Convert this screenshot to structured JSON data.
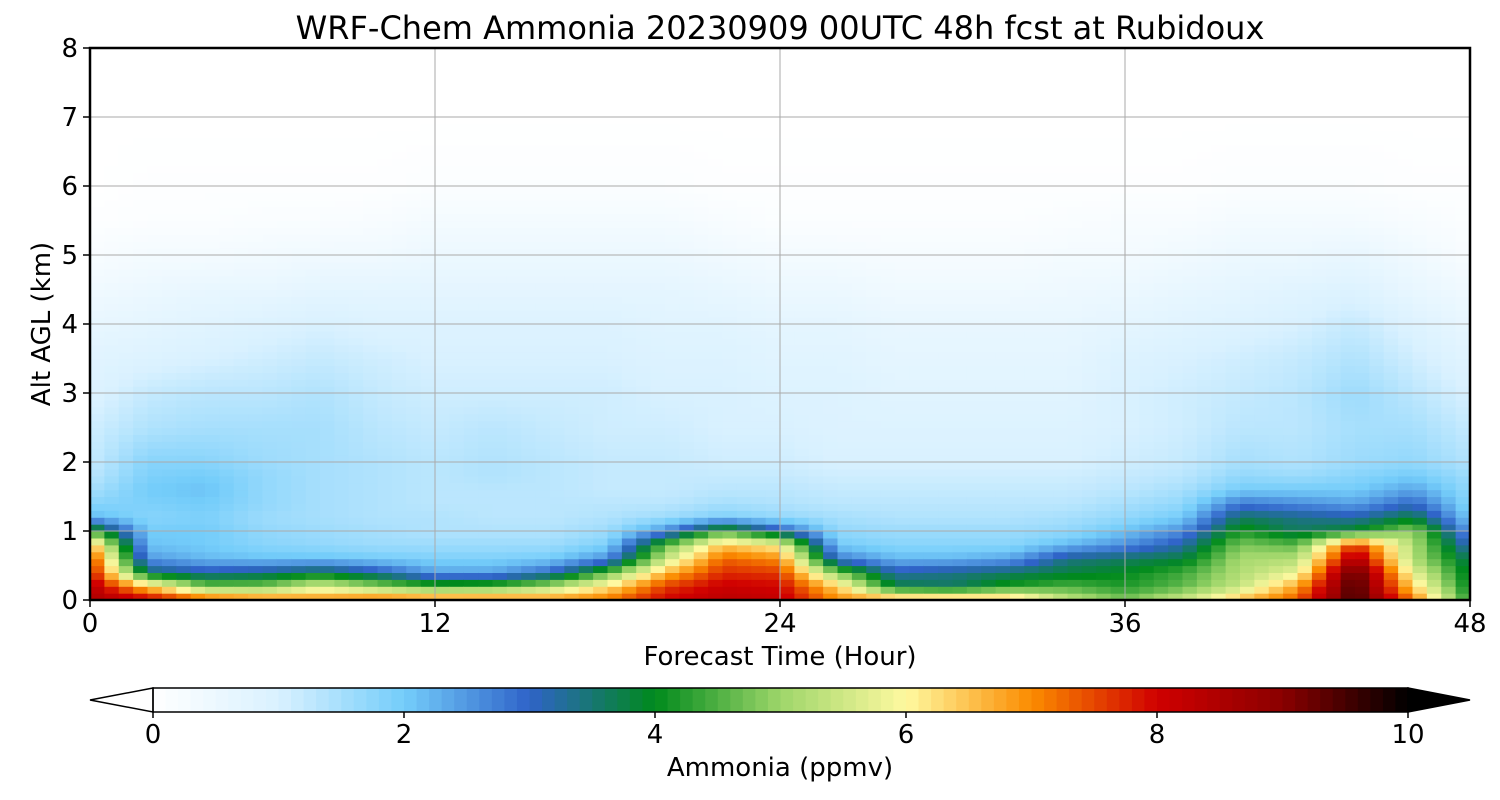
{
  "chart_data": {
    "type": "heatmap",
    "title": "WRF-Chem Ammonia  20230909 00UTC 48h fcst at Rubidoux",
    "xlabel": "Forecast Time (Hour)",
    "ylabel": "Alt AGL (km)",
    "xlim": [
      0,
      48
    ],
    "ylim": [
      0,
      8
    ],
    "xticks": [
      "0",
      "12",
      "24",
      "36",
      "48"
    ],
    "yticks": [
      "0",
      "1",
      "2",
      "3",
      "4",
      "5",
      "6",
      "7",
      "8"
    ],
    "grid": true,
    "colorbar": {
      "label": "Ammonia  (ppmv)",
      "range": [
        0,
        10
      ],
      "ticks": [
        "0",
        "2",
        "4",
        "6",
        "8",
        "10"
      ],
      "extend": "both",
      "colors": [
        "#ffffff",
        "#d9f1ff",
        "#74cdfa",
        "#2f63c8",
        "#008a1c",
        "#9ed66a",
        "#fff9a0",
        "#fb8c00",
        "#d00000",
        "#8a0000",
        "#000000"
      ]
    },
    "x": [
      0,
      2,
      4,
      6,
      8,
      10,
      12,
      14,
      16,
      18,
      20,
      22,
      24,
      26,
      28,
      30,
      32,
      34,
      36,
      38,
      40,
      42,
      44,
      46,
      48
    ],
    "z_levels_km": [
      0,
      0.2,
      0.4,
      0.6,
      0.8,
      1.0,
      1.2,
      1.4,
      1.6,
      1.8,
      2.0,
      2.5,
      3.0,
      3.5,
      4.0,
      4.5,
      5.0,
      5.5,
      6.0,
      7.0,
      8.0
    ],
    "values": [
      [
        8.5,
        8.4,
        8.0,
        7.7,
        6.8,
        4.5,
        2.2,
        1.8,
        1.5,
        1.3,
        1.2,
        1.1,
        0.9,
        0.8,
        0.6,
        0.4,
        0.2,
        0.05,
        0.0,
        0.0,
        0.0
      ],
      [
        8.2,
        6.5,
        3.6,
        2.5,
        2.1,
        2.0,
        1.8,
        1.9,
        2.0,
        1.9,
        1.8,
        1.4,
        1.2,
        0.9,
        0.7,
        0.5,
        0.3,
        0.1,
        0.05,
        0.0,
        0.0
      ],
      [
        7.5,
        4.8,
        3.2,
        2.2,
        2.0,
        2.0,
        1.9,
        2.0,
        2.1,
        2.0,
        1.8,
        1.5,
        1.3,
        1.0,
        0.8,
        0.6,
        0.3,
        0.1,
        0.05,
        0.0,
        0.0
      ],
      [
        7.2,
        4.8,
        3.4,
        2.1,
        1.8,
        1.7,
        1.6,
        1.7,
        1.7,
        1.7,
        1.6,
        1.5,
        1.3,
        1.1,
        0.9,
        0.6,
        0.35,
        0.15,
        0.05,
        0.0,
        0.0
      ],
      [
        7.0,
        5.6,
        3.8,
        2.1,
        1.7,
        1.6,
        1.5,
        1.5,
        1.5,
        1.5,
        1.5,
        1.5,
        1.4,
        1.2,
        1.0,
        0.7,
        0.4,
        0.15,
        0.05,
        0.0,
        0.0
      ],
      [
        7.3,
        5.0,
        3.2,
        2.0,
        1.6,
        1.5,
        1.4,
        1.4,
        1.4,
        1.4,
        1.4,
        1.3,
        1.2,
        1.1,
        0.9,
        0.7,
        0.4,
        0.2,
        0.05,
        0.0,
        0.0
      ],
      [
        7.2,
        4.5,
        2.4,
        1.9,
        1.6,
        1.4,
        1.4,
        1.3,
        1.3,
        1.3,
        1.3,
        1.2,
        1.1,
        1.0,
        0.9,
        0.7,
        0.5,
        0.3,
        0.1,
        0.0,
        0.0
      ],
      [
        7.2,
        4.6,
        2.4,
        1.9,
        1.6,
        1.4,
        1.3,
        1.3,
        1.3,
        1.4,
        1.4,
        1.3,
        1.1,
        1.0,
        0.9,
        0.7,
        0.5,
        0.3,
        0.1,
        0.0,
        0.0
      ],
      [
        7.0,
        5.2,
        3.0,
        2.0,
        1.6,
        1.4,
        1.3,
        1.3,
        1.3,
        1.3,
        1.3,
        1.2,
        1.1,
        1.0,
        0.9,
        0.7,
        0.5,
        0.3,
        0.1,
        0.0,
        0.0
      ],
      [
        7.2,
        6.2,
        4.6,
        2.6,
        1.9,
        1.6,
        1.4,
        1.3,
        1.2,
        1.2,
        1.2,
        1.1,
        1.1,
        1.0,
        0.9,
        0.7,
        0.5,
        0.3,
        0.1,
        0.0,
        0.0
      ],
      [
        8.0,
        7.6,
        6.6,
        5.4,
        4.6,
        2.6,
        1.6,
        1.3,
        1.2,
        1.2,
        1.2,
        1.1,
        1.0,
        0.9,
        0.8,
        0.7,
        0.5,
        0.3,
        0.1,
        0.0,
        0.0
      ],
      [
        8.3,
        8.1,
        7.7,
        7.3,
        6.5,
        4.5,
        1.9,
        1.5,
        1.3,
        1.2,
        1.1,
        1.0,
        1.0,
        0.9,
        0.8,
        0.6,
        0.4,
        0.2,
        0.05,
        0.0,
        0.0
      ],
      [
        8.2,
        8.0,
        7.6,
        7.0,
        6.0,
        3.2,
        1.7,
        1.4,
        1.3,
        1.2,
        1.1,
        1.0,
        0.9,
        0.8,
        0.7,
        0.5,
        0.3,
        0.1,
        0.05,
        0.0,
        0.0
      ],
      [
        7.0,
        6.4,
        4.8,
        2.8,
        2.0,
        1.7,
        1.5,
        1.3,
        1.2,
        1.1,
        1.0,
        0.9,
        0.9,
        0.8,
        0.7,
        0.5,
        0.3,
        0.1,
        0.05,
        0.0,
        0.0
      ],
      [
        7.0,
        3.8,
        3.2,
        2.2,
        1.8,
        1.6,
        1.4,
        1.3,
        1.2,
        1.1,
        1.0,
        0.9,
        0.8,
        0.7,
        0.6,
        0.4,
        0.25,
        0.1,
        0.05,
        0.0,
        0.0
      ],
      [
        7.0,
        3.6,
        3.4,
        2.2,
        1.8,
        1.6,
        1.4,
        1.3,
        1.2,
        1.1,
        1.0,
        0.9,
        0.8,
        0.7,
        0.6,
        0.4,
        0.25,
        0.1,
        0.05,
        0.0,
        0.0
      ],
      [
        6.8,
        4.2,
        3.6,
        2.4,
        1.8,
        1.6,
        1.4,
        1.3,
        1.2,
        1.1,
        1.0,
        0.9,
        0.8,
        0.7,
        0.6,
        0.4,
        0.25,
        0.1,
        0.05,
        0.0,
        0.0
      ],
      [
        5.4,
        4.5,
        3.8,
        3.4,
        2.2,
        1.7,
        1.5,
        1.3,
        1.2,
        1.1,
        1.0,
        0.9,
        0.8,
        0.7,
        0.6,
        0.45,
        0.3,
        0.15,
        0.05,
        0.0,
        0.0
      ],
      [
        4.8,
        4.2,
        4.0,
        3.6,
        2.6,
        2.1,
        1.7,
        1.5,
        1.3,
        1.2,
        1.1,
        1.0,
        1.0,
        0.9,
        0.7,
        0.5,
        0.3,
        0.2,
        0.05,
        0.0,
        0.0
      ],
      [
        5.5,
        4.6,
        4.4,
        3.8,
        3.2,
        2.6,
        2.0,
        1.7,
        1.5,
        1.3,
        1.2,
        1.1,
        1.1,
        1.0,
        0.8,
        0.6,
        0.4,
        0.2,
        0.05,
        0.0,
        0.0
      ],
      [
        6.6,
        5.4,
        5.2,
        5.1,
        4.8,
        4.2,
        3.6,
        2.8,
        2.0,
        1.7,
        1.5,
        1.3,
        1.2,
        1.1,
        0.9,
        0.7,
        0.5,
        0.3,
        0.1,
        0.0,
        0.0
      ],
      [
        7.4,
        6.8,
        5.8,
        5.2,
        4.6,
        3.6,
        3.4,
        2.6,
        2.0,
        1.6,
        1.4,
        1.3,
        1.3,
        1.2,
        1.0,
        0.8,
        0.5,
        0.3,
        0.1,
        0.0,
        0.0
      ],
      [
        9.6,
        9.6,
        9.5,
        8.6,
        7.7,
        4.0,
        3.2,
        2.4,
        2.0,
        1.8,
        1.6,
        1.5,
        1.6,
        1.4,
        1.2,
        0.9,
        0.6,
        0.3,
        0.1,
        0.0,
        0.0
      ],
      [
        7.2,
        6.4,
        5.8,
        5.2,
        5.2,
        5.0,
        3.8,
        3.0,
        2.4,
        2.0,
        1.7,
        1.5,
        1.3,
        1.1,
        0.9,
        0.6,
        0.4,
        0.2,
        0.05,
        0.0,
        0.0
      ],
      [
        4.2,
        3.9,
        3.8,
        3.6,
        3.0,
        2.4,
        2.0,
        1.8,
        1.7,
        1.6,
        1.4,
        1.2,
        1.0,
        0.8,
        0.6,
        0.4,
        0.2,
        0.1,
        0.05,
        0.0,
        0.0
      ]
    ]
  }
}
